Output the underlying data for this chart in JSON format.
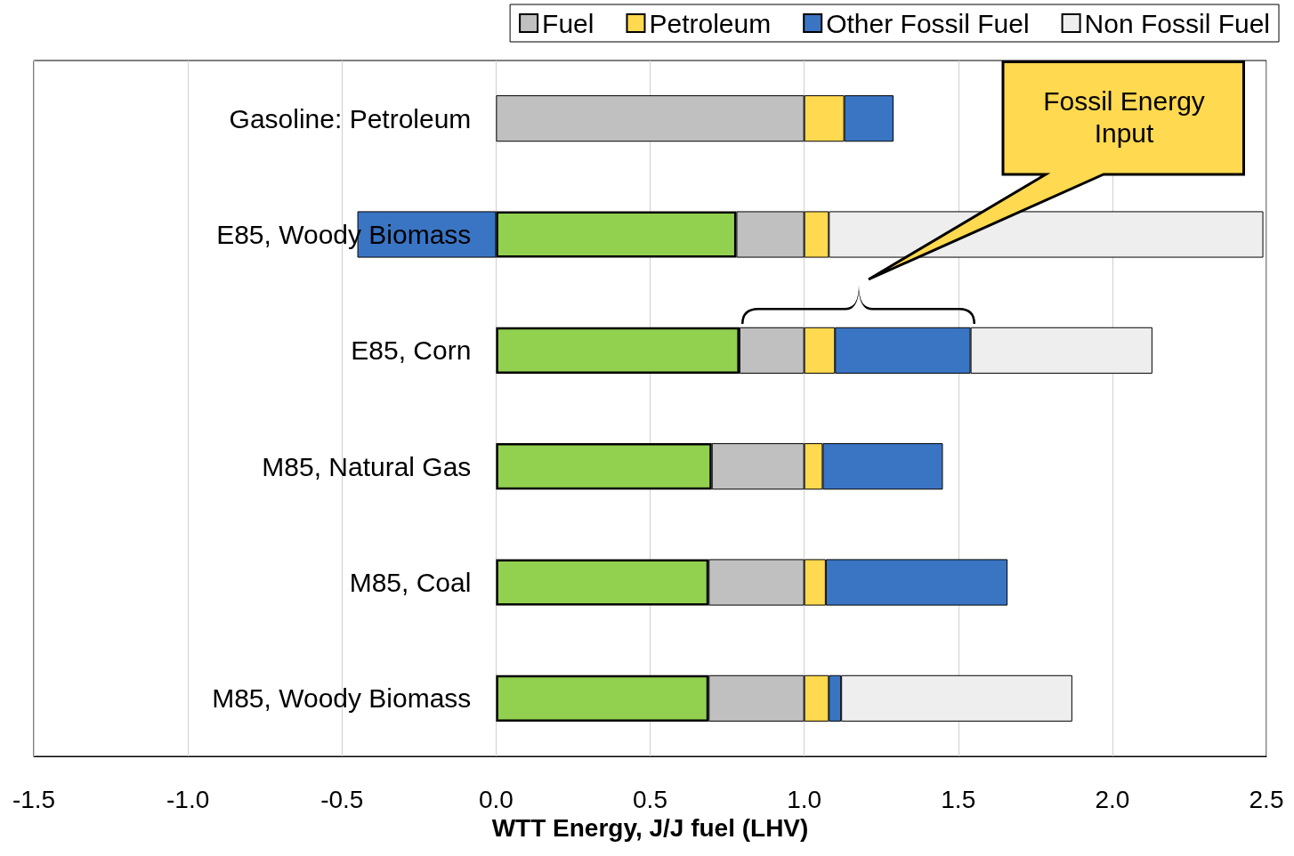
{
  "chart_data": {
    "type": "bar",
    "orientation": "horizontal",
    "stacked": true,
    "categories": [
      "Gasoline: Petroleum",
      "E85, Woody Biomass",
      "E85, Corn",
      "M85, Natural Gas",
      "M85, Coal",
      "M85, Woody Biomass"
    ],
    "series": [
      {
        "color": "#92d050",
        "values": [
          null,
          0.78,
          0.79,
          0.7,
          0.69,
          0.69
        ]
      },
      {
        "name": "Fuel",
        "color": "#c0c0c0",
        "values": [
          1.0,
          0.22,
          0.21,
          0.3,
          0.31,
          0.31
        ]
      },
      {
        "name": "Petroleum",
        "color": "#ffd94f",
        "values": [
          0.13,
          0.08,
          0.1,
          0.06,
          0.07,
          0.08
        ]
      },
      {
        "name": "Other Fossil Fuel",
        "color": "#3a75c4",
        "values": [
          0.16,
          -0.45,
          0.44,
          0.39,
          0.59,
          0.04
        ]
      },
      {
        "name": "Non Fossil Fuel",
        "color": "#eeeeee",
        "values": [
          null,
          1.41,
          0.59,
          null,
          null,
          0.75
        ]
      }
    ],
    "xlim": [
      -1.5,
      2.5
    ],
    "xticks": [
      -1.5,
      {
        "value": -1,
        "label": "-1.0"
      },
      -0.5,
      {
        "value": 0,
        "label": "0.0"
      },
      0.5,
      {
        "value": 1,
        "label": "1.0"
      },
      1.5,
      {
        "value": 2,
        "label": "2.0"
      },
      2.5
    ],
    "xlabel": "WTT Energy, J/J fuel (LHV)",
    "grid": "x",
    "legend": "top right",
    "annotations": [
      "Fossil Energy Input"
    ]
  }
}
